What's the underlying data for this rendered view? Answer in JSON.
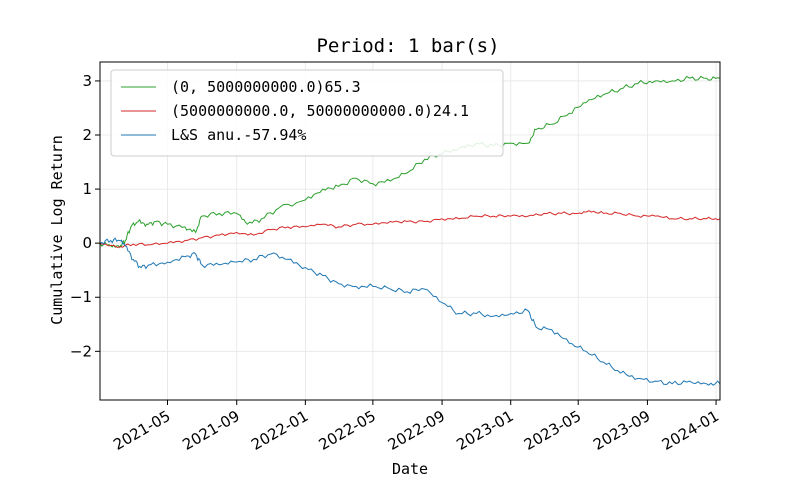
{
  "chart_data": {
    "type": "line",
    "title": "Period: 1 bar(s)",
    "xlabel": "Date",
    "ylabel": "Cumulative Log Return",
    "xlim": [
      "2021-01-01",
      "2024-01-08"
    ],
    "ylim": [
      -2.9,
      3.35
    ],
    "x_ticks": [
      "2021-05",
      "2021-09",
      "2022-01",
      "2022-05",
      "2022-09",
      "2023-01",
      "2023-05",
      "2023-09",
      "2024-01"
    ],
    "y_ticks": [
      -2,
      -1,
      0,
      1,
      2,
      3
    ],
    "grid": true,
    "legend_position": "top-left",
    "series": [
      {
        "name": "(0, 5000000000.0)65.3",
        "color": "#2ca02c",
        "points": [
          [
            "2021-01-01",
            0.0
          ],
          [
            "2021-01-20",
            -0.05
          ],
          [
            "2021-02-05",
            -0.08
          ],
          [
            "2021-02-15",
            0.05
          ],
          [
            "2021-02-25",
            0.3
          ],
          [
            "2021-03-10",
            0.4
          ],
          [
            "2021-03-25",
            0.35
          ],
          [
            "2021-04-10",
            0.4
          ],
          [
            "2021-05-01",
            0.35
          ],
          [
            "2021-06-01",
            0.3
          ],
          [
            "2021-06-20",
            0.2
          ],
          [
            "2021-07-01",
            0.5
          ],
          [
            "2021-08-01",
            0.55
          ],
          [
            "2021-09-01",
            0.55
          ],
          [
            "2021-09-20",
            0.35
          ],
          [
            "2021-10-15",
            0.45
          ],
          [
            "2021-11-15",
            0.65
          ],
          [
            "2022-01-01",
            0.8
          ],
          [
            "2022-02-01",
            1.0
          ],
          [
            "2022-03-01",
            1.05
          ],
          [
            "2022-04-01",
            1.2
          ],
          [
            "2022-05-01",
            1.1
          ],
          [
            "2022-06-01",
            1.15
          ],
          [
            "2022-07-01",
            1.3
          ],
          [
            "2022-08-01",
            1.55
          ],
          [
            "2022-09-01",
            1.65
          ],
          [
            "2022-10-01",
            1.75
          ],
          [
            "2022-11-01",
            1.85
          ],
          [
            "2022-12-01",
            1.8
          ],
          [
            "2023-01-01",
            1.85
          ],
          [
            "2023-02-01",
            1.85
          ],
          [
            "2023-02-15",
            2.1
          ],
          [
            "2023-03-15",
            2.2
          ],
          [
            "2023-04-15",
            2.4
          ],
          [
            "2023-05-15",
            2.6
          ],
          [
            "2023-06-15",
            2.75
          ],
          [
            "2023-07-15",
            2.85
          ],
          [
            "2023-08-15",
            2.95
          ],
          [
            "2023-09-15",
            3.0
          ],
          [
            "2023-10-15",
            3.0
          ],
          [
            "2023-11-15",
            3.05
          ],
          [
            "2023-12-15",
            3.05
          ],
          [
            "2024-01-08",
            3.05
          ]
        ]
      },
      {
        "name": "(5000000000.0, 50000000000.0)24.1",
        "color": "#d62728",
        "points": [
          [
            "2021-01-01",
            0.0
          ],
          [
            "2021-02-01",
            -0.08
          ],
          [
            "2021-03-01",
            -0.02
          ],
          [
            "2021-04-01",
            -0.03
          ],
          [
            "2021-05-01",
            0.0
          ],
          [
            "2021-06-01",
            0.05
          ],
          [
            "2021-07-01",
            0.1
          ],
          [
            "2021-08-01",
            0.15
          ],
          [
            "2021-09-01",
            0.2
          ],
          [
            "2021-10-01",
            0.15
          ],
          [
            "2021-11-01",
            0.25
          ],
          [
            "2021-12-01",
            0.3
          ],
          [
            "2022-01-01",
            0.3
          ],
          [
            "2022-02-01",
            0.35
          ],
          [
            "2022-03-01",
            0.3
          ],
          [
            "2022-04-01",
            0.35
          ],
          [
            "2022-05-01",
            0.35
          ],
          [
            "2022-06-01",
            0.4
          ],
          [
            "2022-07-01",
            0.4
          ],
          [
            "2022-08-01",
            0.4
          ],
          [
            "2022-09-01",
            0.45
          ],
          [
            "2022-10-01",
            0.45
          ],
          [
            "2022-11-01",
            0.5
          ],
          [
            "2022-12-01",
            0.5
          ],
          [
            "2023-01-01",
            0.5
          ],
          [
            "2023-02-01",
            0.5
          ],
          [
            "2023-03-01",
            0.55
          ],
          [
            "2023-04-01",
            0.55
          ],
          [
            "2023-05-01",
            0.55
          ],
          [
            "2023-05-20",
            0.6
          ],
          [
            "2023-06-15",
            0.55
          ],
          [
            "2023-07-15",
            0.55
          ],
          [
            "2023-08-15",
            0.5
          ],
          [
            "2023-09-15",
            0.5
          ],
          [
            "2023-10-15",
            0.45
          ],
          [
            "2023-11-15",
            0.45
          ],
          [
            "2023-12-15",
            0.45
          ],
          [
            "2024-01-08",
            0.45
          ]
        ]
      },
      {
        "name": "L&S  anu.-57.94%",
        "color": "#1f77b4",
        "points": [
          [
            "2021-01-01",
            0.0
          ],
          [
            "2021-01-20",
            0.05
          ],
          [
            "2021-02-05",
            0.05
          ],
          [
            "2021-02-15",
            -0.05
          ],
          [
            "2021-03-01",
            -0.3
          ],
          [
            "2021-03-15",
            -0.45
          ],
          [
            "2021-04-01",
            -0.4
          ],
          [
            "2021-05-01",
            -0.35
          ],
          [
            "2021-06-01",
            -0.25
          ],
          [
            "2021-06-20",
            -0.2
          ],
          [
            "2021-07-01",
            -0.4
          ],
          [
            "2021-08-01",
            -0.4
          ],
          [
            "2021-09-01",
            -0.35
          ],
          [
            "2021-10-01",
            -0.3
          ],
          [
            "2021-11-01",
            -0.2
          ],
          [
            "2021-12-01",
            -0.3
          ],
          [
            "2022-01-01",
            -0.45
          ],
          [
            "2022-02-01",
            -0.6
          ],
          [
            "2022-03-01",
            -0.75
          ],
          [
            "2022-04-01",
            -0.8
          ],
          [
            "2022-05-01",
            -0.8
          ],
          [
            "2022-06-01",
            -0.85
          ],
          [
            "2022-07-01",
            -0.9
          ],
          [
            "2022-08-01",
            -0.85
          ],
          [
            "2022-09-01",
            -1.1
          ],
          [
            "2022-10-01",
            -1.3
          ],
          [
            "2022-11-01",
            -1.3
          ],
          [
            "2022-12-01",
            -1.35
          ],
          [
            "2023-01-01",
            -1.3
          ],
          [
            "2023-02-01",
            -1.25
          ],
          [
            "2023-02-15",
            -1.55
          ],
          [
            "2023-03-15",
            -1.6
          ],
          [
            "2023-04-15",
            -1.85
          ],
          [
            "2023-05-15",
            -2.0
          ],
          [
            "2023-06-15",
            -2.2
          ],
          [
            "2023-07-15",
            -2.4
          ],
          [
            "2023-08-15",
            -2.5
          ],
          [
            "2023-09-15",
            -2.55
          ],
          [
            "2023-10-15",
            -2.6
          ],
          [
            "2023-11-15",
            -2.55
          ],
          [
            "2023-12-15",
            -2.6
          ],
          [
            "2024-01-08",
            -2.6
          ]
        ]
      }
    ]
  }
}
